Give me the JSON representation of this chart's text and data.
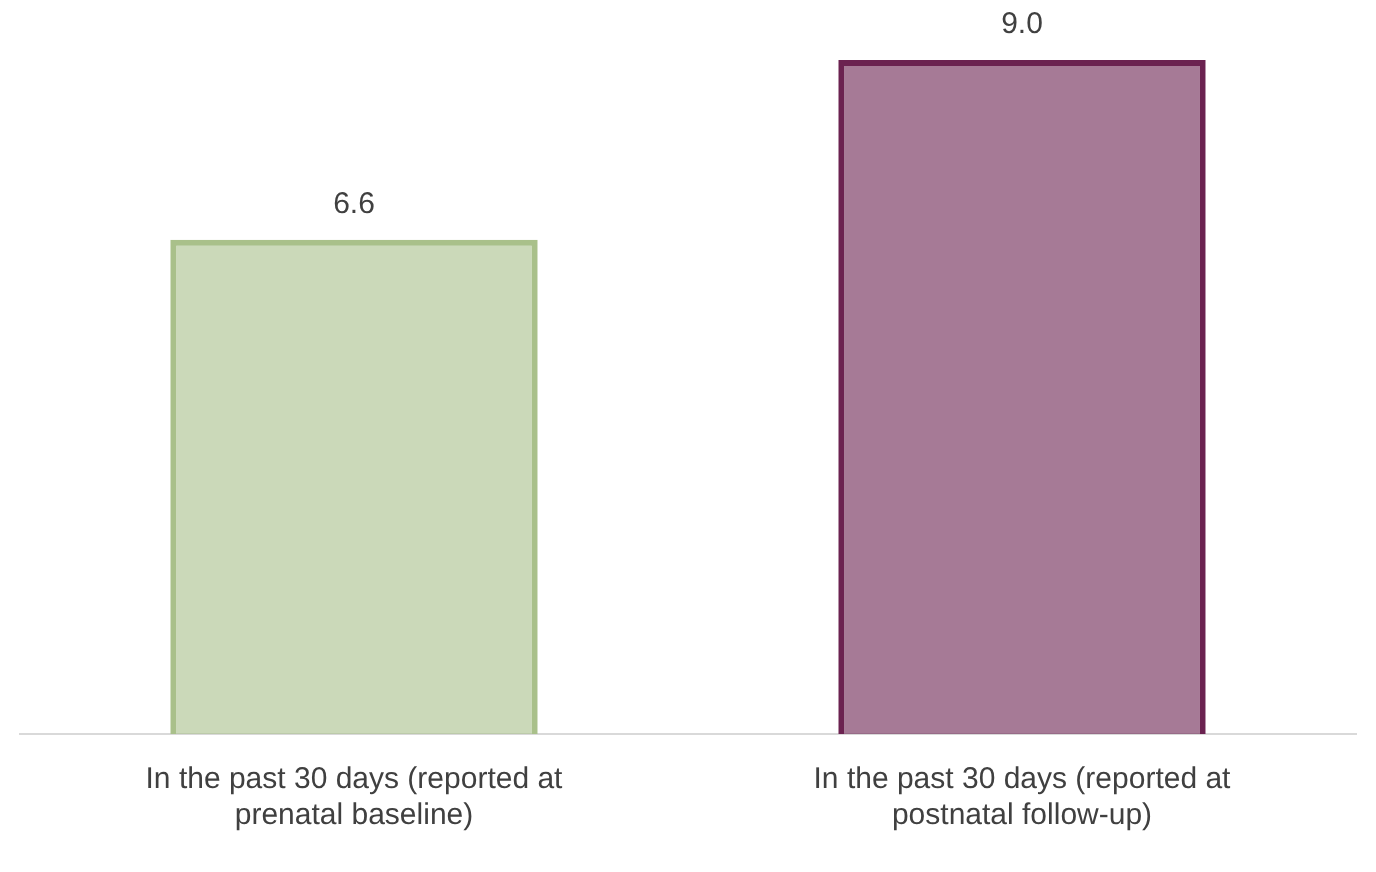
{
  "chart_data": {
    "type": "bar",
    "categories": [
      "In the past 30 days (reported at prenatal baseline)",
      "In the past 30 days (reported at postnatal follow-up)"
    ],
    "values": [
      6.6,
      9.0
    ],
    "colors": [
      "#a9c08a",
      "#6b2250"
    ],
    "value_labels": [
      "6.6",
      "9.0"
    ],
    "grid": false,
    "legend": false
  }
}
